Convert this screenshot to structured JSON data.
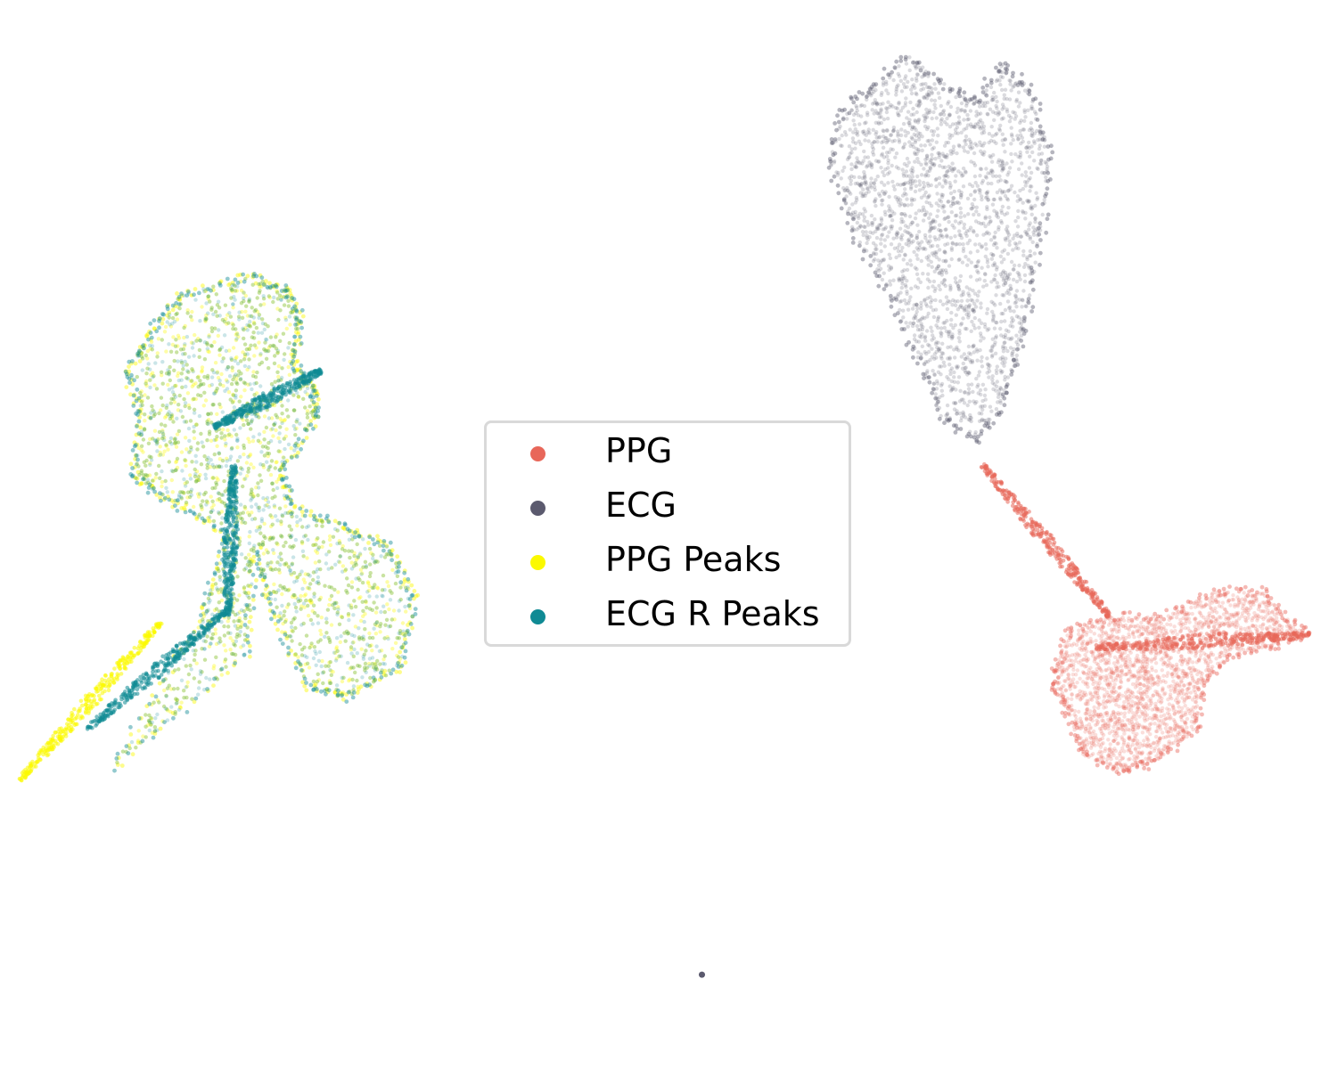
{
  "chart_data": {
    "type": "scatter",
    "title": "",
    "xlabel": "",
    "ylabel": "",
    "axes_visible": false,
    "grid": false,
    "legend_placement": "center",
    "xlim": [
      -6,
      14
    ],
    "ylim": [
      -6,
      11
    ],
    "series": [
      {
        "name": "PPG",
        "color": "#e8675a",
        "clusters": [
          {
            "shape": "blob",
            "outline": [
              [
                9.8,
                0.4
              ],
              [
                10.0,
                1.0
              ],
              [
                10.6,
                1.2
              ],
              [
                11.4,
                1.2
              ],
              [
                12.2,
                1.6
              ],
              [
                12.9,
                1.6
              ],
              [
                13.2,
                1.2
              ],
              [
                13.6,
                0.9
              ],
              [
                13.0,
                0.7
              ],
              [
                12.4,
                0.6
              ],
              [
                12.0,
                0.1
              ],
              [
                11.9,
                -0.6
              ],
              [
                11.3,
                -1.1
              ],
              [
                10.8,
                -1.3
              ],
              [
                10.2,
                -1.0
              ],
              [
                10.0,
                -0.4
              ],
              [
                9.8,
                0.0
              ]
            ]
          },
          {
            "shape": "streak",
            "from": [
              8.7,
              3.6
            ],
            "to": [
              10.6,
              1.2
            ]
          },
          {
            "shape": "streak",
            "from": [
              10.4,
              0.7
            ],
            "to": [
              13.6,
              0.9
            ]
          }
        ]
      },
      {
        "name": "ECG",
        "color": "#5b5a6e",
        "clusters": [
          {
            "shape": "blob",
            "outline": [
              [
                8.6,
                4.0
              ],
              [
                8.1,
                4.3
              ],
              [
                7.7,
                5.3
              ],
              [
                7.3,
                6.3
              ],
              [
                6.8,
                7.2
              ],
              [
                6.4,
                8.4
              ],
              [
                6.6,
                9.2
              ],
              [
                7.0,
                9.6
              ],
              [
                7.6,
                10.1
              ],
              [
                8.2,
                9.6
              ],
              [
                8.6,
                9.4
              ],
              [
                9.0,
                10.0
              ],
              [
                9.4,
                9.6
              ],
              [
                9.7,
                8.6
              ],
              [
                9.6,
                7.4
              ],
              [
                9.4,
                6.2
              ],
              [
                9.2,
                5.2
              ],
              [
                8.9,
                4.4
              ]
            ]
          },
          {
            "shape": "point",
            "x": 4.5,
            "y": -4.5
          }
        ]
      },
      {
        "name": "PPG Peaks",
        "color": "#fbf900",
        "clusters": [
          {
            "shape": "blob",
            "outline": [
              [
                -3.3,
                6.3
              ],
              [
                -2.3,
                6.6
              ],
              [
                -1.7,
                6.4
              ],
              [
                -1.5,
                5.9
              ],
              [
                -1.6,
                5.2
              ],
              [
                -1.3,
                4.8
              ],
              [
                -1.3,
                4.3
              ],
              [
                -1.8,
                3.5
              ],
              [
                -1.6,
                2.9
              ],
              [
                -0.8,
                2.6
              ],
              [
                -0.2,
                2.3
              ],
              [
                0.2,
                1.5
              ],
              [
                0.0,
                0.4
              ],
              [
                -0.8,
                -0.1
              ],
              [
                -1.4,
                0.1
              ],
              [
                -1.9,
                1.2
              ],
              [
                -2.2,
                2.2
              ],
              [
                -2.3,
                0.6
              ],
              [
                -4.3,
                -1.2
              ],
              [
                -3.0,
                1.2
              ],
              [
                -2.6,
                2.5
              ],
              [
                -3.4,
                3.0
              ],
              [
                -4.0,
                3.4
              ],
              [
                -3.9,
                4.4
              ],
              [
                -4.1,
                5.1
              ],
              [
                -3.7,
                5.8
              ]
            ]
          },
          {
            "shape": "streak",
            "from": [
              -5.7,
              -1.4
            ],
            "to": [
              -3.6,
              1.1
            ]
          }
        ]
      },
      {
        "name": "ECG R Peaks",
        "color": "#0f8a94",
        "clusters": [
          {
            "shape": "blob",
            "outline": [
              [
                -3.3,
                6.3
              ],
              [
                -2.3,
                6.6
              ],
              [
                -1.7,
                6.4
              ],
              [
                -1.5,
                5.9
              ],
              [
                -1.6,
                5.2
              ],
              [
                -1.3,
                4.8
              ],
              [
                -1.3,
                4.3
              ],
              [
                -1.8,
                3.5
              ],
              [
                -1.6,
                2.9
              ],
              [
                -0.8,
                2.6
              ],
              [
                -0.2,
                2.3
              ],
              [
                0.2,
                1.5
              ],
              [
                0.0,
                0.4
              ],
              [
                -0.8,
                -0.1
              ],
              [
                -1.4,
                0.1
              ],
              [
                -1.9,
                1.2
              ],
              [
                -2.2,
                2.2
              ],
              [
                -2.3,
                0.6
              ],
              [
                -4.3,
                -1.2
              ],
              [
                -3.0,
                1.2
              ],
              [
                -2.6,
                2.5
              ],
              [
                -3.4,
                3.0
              ],
              [
                -4.0,
                3.4
              ],
              [
                -3.9,
                4.4
              ],
              [
                -4.1,
                5.1
              ],
              [
                -3.7,
                5.8
              ]
            ]
          },
          {
            "shape": "streak",
            "from": [
              -2.8,
              4.2
            ],
            "to": [
              -1.2,
              5.1
            ]
          },
          {
            "shape": "streak",
            "from": [
              -2.5,
              3.6
            ],
            "to": [
              -2.6,
              1.2
            ]
          },
          {
            "shape": "streak",
            "from": [
              -2.6,
              1.3
            ],
            "to": [
              -4.7,
              -0.6
            ]
          }
        ]
      }
    ]
  },
  "legend": {
    "items": [
      {
        "label": "PPG",
        "color": "#e8675a"
      },
      {
        "label": "ECG",
        "color": "#5b5a6e"
      },
      {
        "label": "PPG Peaks",
        "color": "#fbf900"
      },
      {
        "label": "ECG R Peaks",
        "color": "#0f8a94"
      }
    ]
  }
}
